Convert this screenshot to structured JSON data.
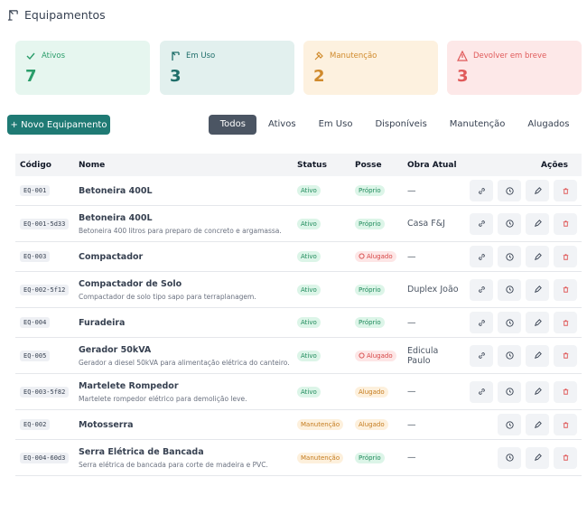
{
  "header": {
    "title": "Equipamentos"
  },
  "stats": [
    {
      "label": "Ativos",
      "value": 7
    },
    {
      "label": "Em Uso",
      "value": 3
    },
    {
      "label": "Manutenção",
      "value": 2
    },
    {
      "label": "Devolver em breve",
      "value": 3
    }
  ],
  "new_button": "+ Novo Equipamento",
  "tabs": [
    "Todos",
    "Ativos",
    "Em Uso",
    "Disponíveis",
    "Manutenção",
    "Alugados"
  ],
  "table": {
    "columns": [
      "Código",
      "Nome",
      "Status",
      "Posse",
      "Obra Atual",
      "Ações"
    ],
    "rows": [
      {
        "code": "EQ-001",
        "name": "Betoneira 400L",
        "status": "Ativo",
        "posse": "Próprio",
        "obra": "—"
      },
      {
        "code": "EQ-001-5d33",
        "name": "Betoneira 400L",
        "desc": "Betoneira 400 litros para preparo de concreto e argamassa.",
        "status": "Ativo",
        "posse": "Próprio",
        "obra": "Casa F&J"
      },
      {
        "code": "EQ-003",
        "name": "Compactador",
        "status": "Ativo",
        "posse": "Alugado",
        "obra": "—"
      },
      {
        "code": "EQ-002-5f12",
        "name": "Compactador de Solo",
        "desc": "Compactador de solo tipo sapo para terraplanagem.",
        "status": "Ativo",
        "posse": "Próprio",
        "obra": "Duplex João"
      },
      {
        "code": "EQ-004",
        "name": "Furadeira",
        "status": "Ativo",
        "posse": "Próprio",
        "obra": "—"
      },
      {
        "code": "EQ-005",
        "name": "Gerador 50kVA",
        "desc": "Gerador a diesel 50kVA para alimentação elétrica do canteiro.",
        "status": "Ativo",
        "posse": "Alugado",
        "obra": "Edicula Paulo"
      },
      {
        "code": "EQ-003-5f82",
        "name": "Martelete Rompedor",
        "desc": "Martelete rompedor elétrico para demolição leve.",
        "status": "Ativo",
        "posse": "Alugado",
        "obra": "—"
      },
      {
        "code": "EQ-002",
        "name": "Motosserra",
        "status": "Manutenção",
        "posse": "Alugado",
        "obra": "—"
      },
      {
        "code": "EQ-004-60d3",
        "name": "Serra Elétrica de Bancada",
        "desc": "Serra elétrica de bancada para corte de madeira e PVC.",
        "status": "Manutenção",
        "posse": "Próprio",
        "obra": "—"
      }
    ]
  }
}
